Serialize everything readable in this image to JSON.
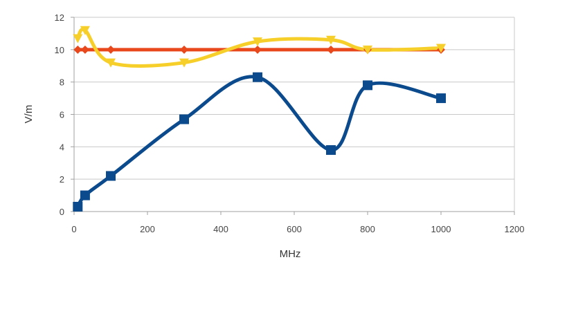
{
  "chart_data": {
    "type": "line",
    "smooth": true,
    "xlabel": "MHz",
    "ylabel": "V/m",
    "xlim": [
      0,
      1200
    ],
    "ylim": [
      0,
      12
    ],
    "xticks": [
      "0",
      "200",
      "400",
      "600",
      "800",
      "1000",
      "1200"
    ],
    "yticks": [
      "0",
      "2",
      "4",
      "6",
      "8",
      "10",
      "12"
    ],
    "grid": "horizontal",
    "legend": "none",
    "series": [
      {
        "color": "#e8481c",
        "marker": "diamond",
        "x": [
          10,
          30,
          100,
          300,
          500,
          700,
          800,
          1000
        ],
        "values": [
          10,
          10,
          10,
          10,
          10,
          10,
          10,
          10
        ]
      },
      {
        "color": "#f7cf2a",
        "marker": "triangle-down",
        "x": [
          10,
          30,
          100,
          300,
          500,
          700,
          800,
          1000
        ],
        "values": [
          10.7,
          11.2,
          9.2,
          9.2,
          10.5,
          10.6,
          10.0,
          10.1
        ]
      },
      {
        "color": "#0b4a8c",
        "marker": "square",
        "x": [
          10,
          30,
          100,
          300,
          500,
          700,
          800,
          1000
        ],
        "values": [
          0.3,
          1.0,
          2.2,
          5.7,
          8.3,
          3.8,
          7.8,
          7.0
        ]
      }
    ]
  }
}
